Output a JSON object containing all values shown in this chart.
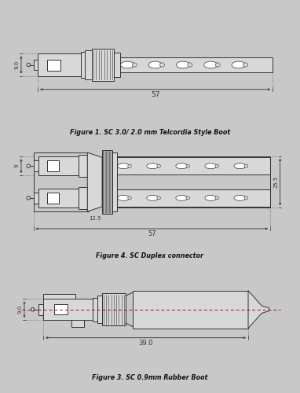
{
  "bg_color": "#c8c8c8",
  "panel_bg": "#ffffff",
  "border_color": "#444444",
  "line_color": "#333333",
  "dim_color": "#333333",
  "red_line_color": "#cc0000",
  "fig1_caption": "Figure 1. SC 3.0/ 2.0 mm Telcordia Style Boot",
  "fig2_caption": "Figure 4. SC Duplex connector",
  "fig3_caption": "Figure 3. SC 0.9mm Rubber Boot",
  "fig1_dim1": "9.0",
  "fig1_dim2": "57",
  "fig2_dim1": "9",
  "fig2_dim2": "12.5",
  "fig2_dim3": "57",
  "fig2_dim4": "25.5",
  "fig3_dim1": "9.0",
  "fig3_dim2": "39.0"
}
